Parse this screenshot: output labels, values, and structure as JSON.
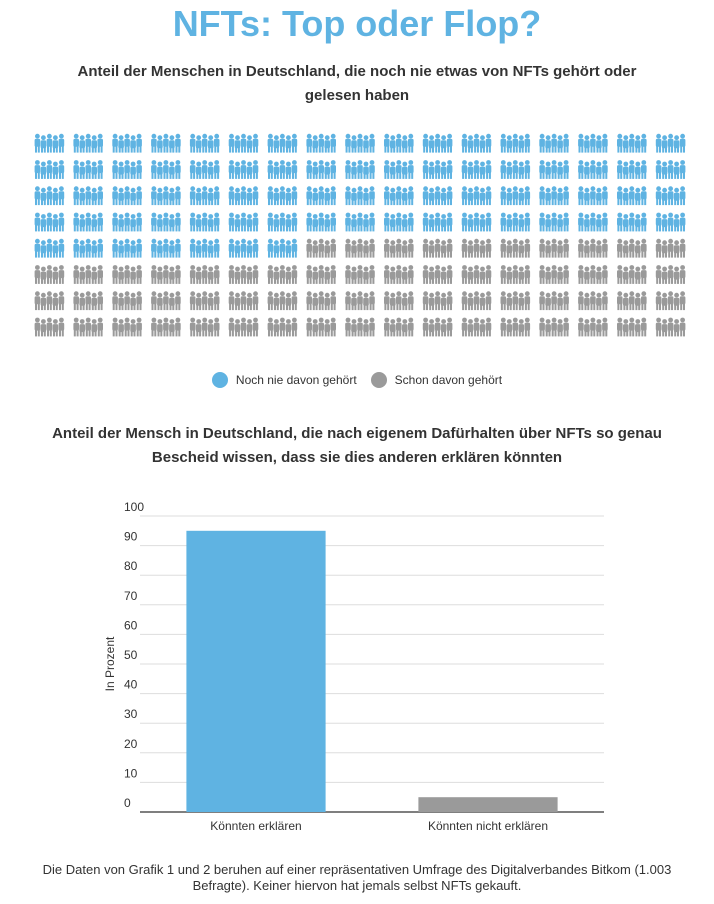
{
  "title": "NFTs: Top oder Flop?",
  "pictogram": {
    "subtitle": "Anteil der Menschen in Deutschland, die noch nie etwas von NFTs gehört oder gelesen haben",
    "rows": 8,
    "columns": 17,
    "highlighted_count": 75,
    "legend": [
      {
        "label": "Noch nie davon gehört",
        "color": "#5fb3e2"
      },
      {
        "label": "Schon davon gehört",
        "color": "#9a9a9a"
      }
    ],
    "icon": "people-group-icon"
  },
  "chart_section": {
    "subtitle": "Anteil der Mensch in Deutschland, die nach eigenem Dafürhalten über NFTs so genau Bescheid wissen, dass sie dies anderen erklären könnten"
  },
  "chart_data": {
    "type": "bar",
    "categories": [
      "Könnten erklären",
      "Könnten nicht erklären"
    ],
    "values": [
      95,
      5
    ],
    "colors": [
      "#5fb3e2",
      "#9a9a9a"
    ],
    "ylabel": "In Prozent",
    "ylim": [
      0,
      100
    ],
    "yticks": [
      0,
      10,
      20,
      30,
      40,
      50,
      60,
      70,
      80,
      90,
      100
    ],
    "grid": true
  },
  "footnote": "Die Daten von Grafik 1 und 2 beruhen auf einer repräsentativen Umfrage des Digitalverbandes Bitkom (1.003 Befragte). Keiner hiervon hat jemals selbst NFTs gekauft."
}
